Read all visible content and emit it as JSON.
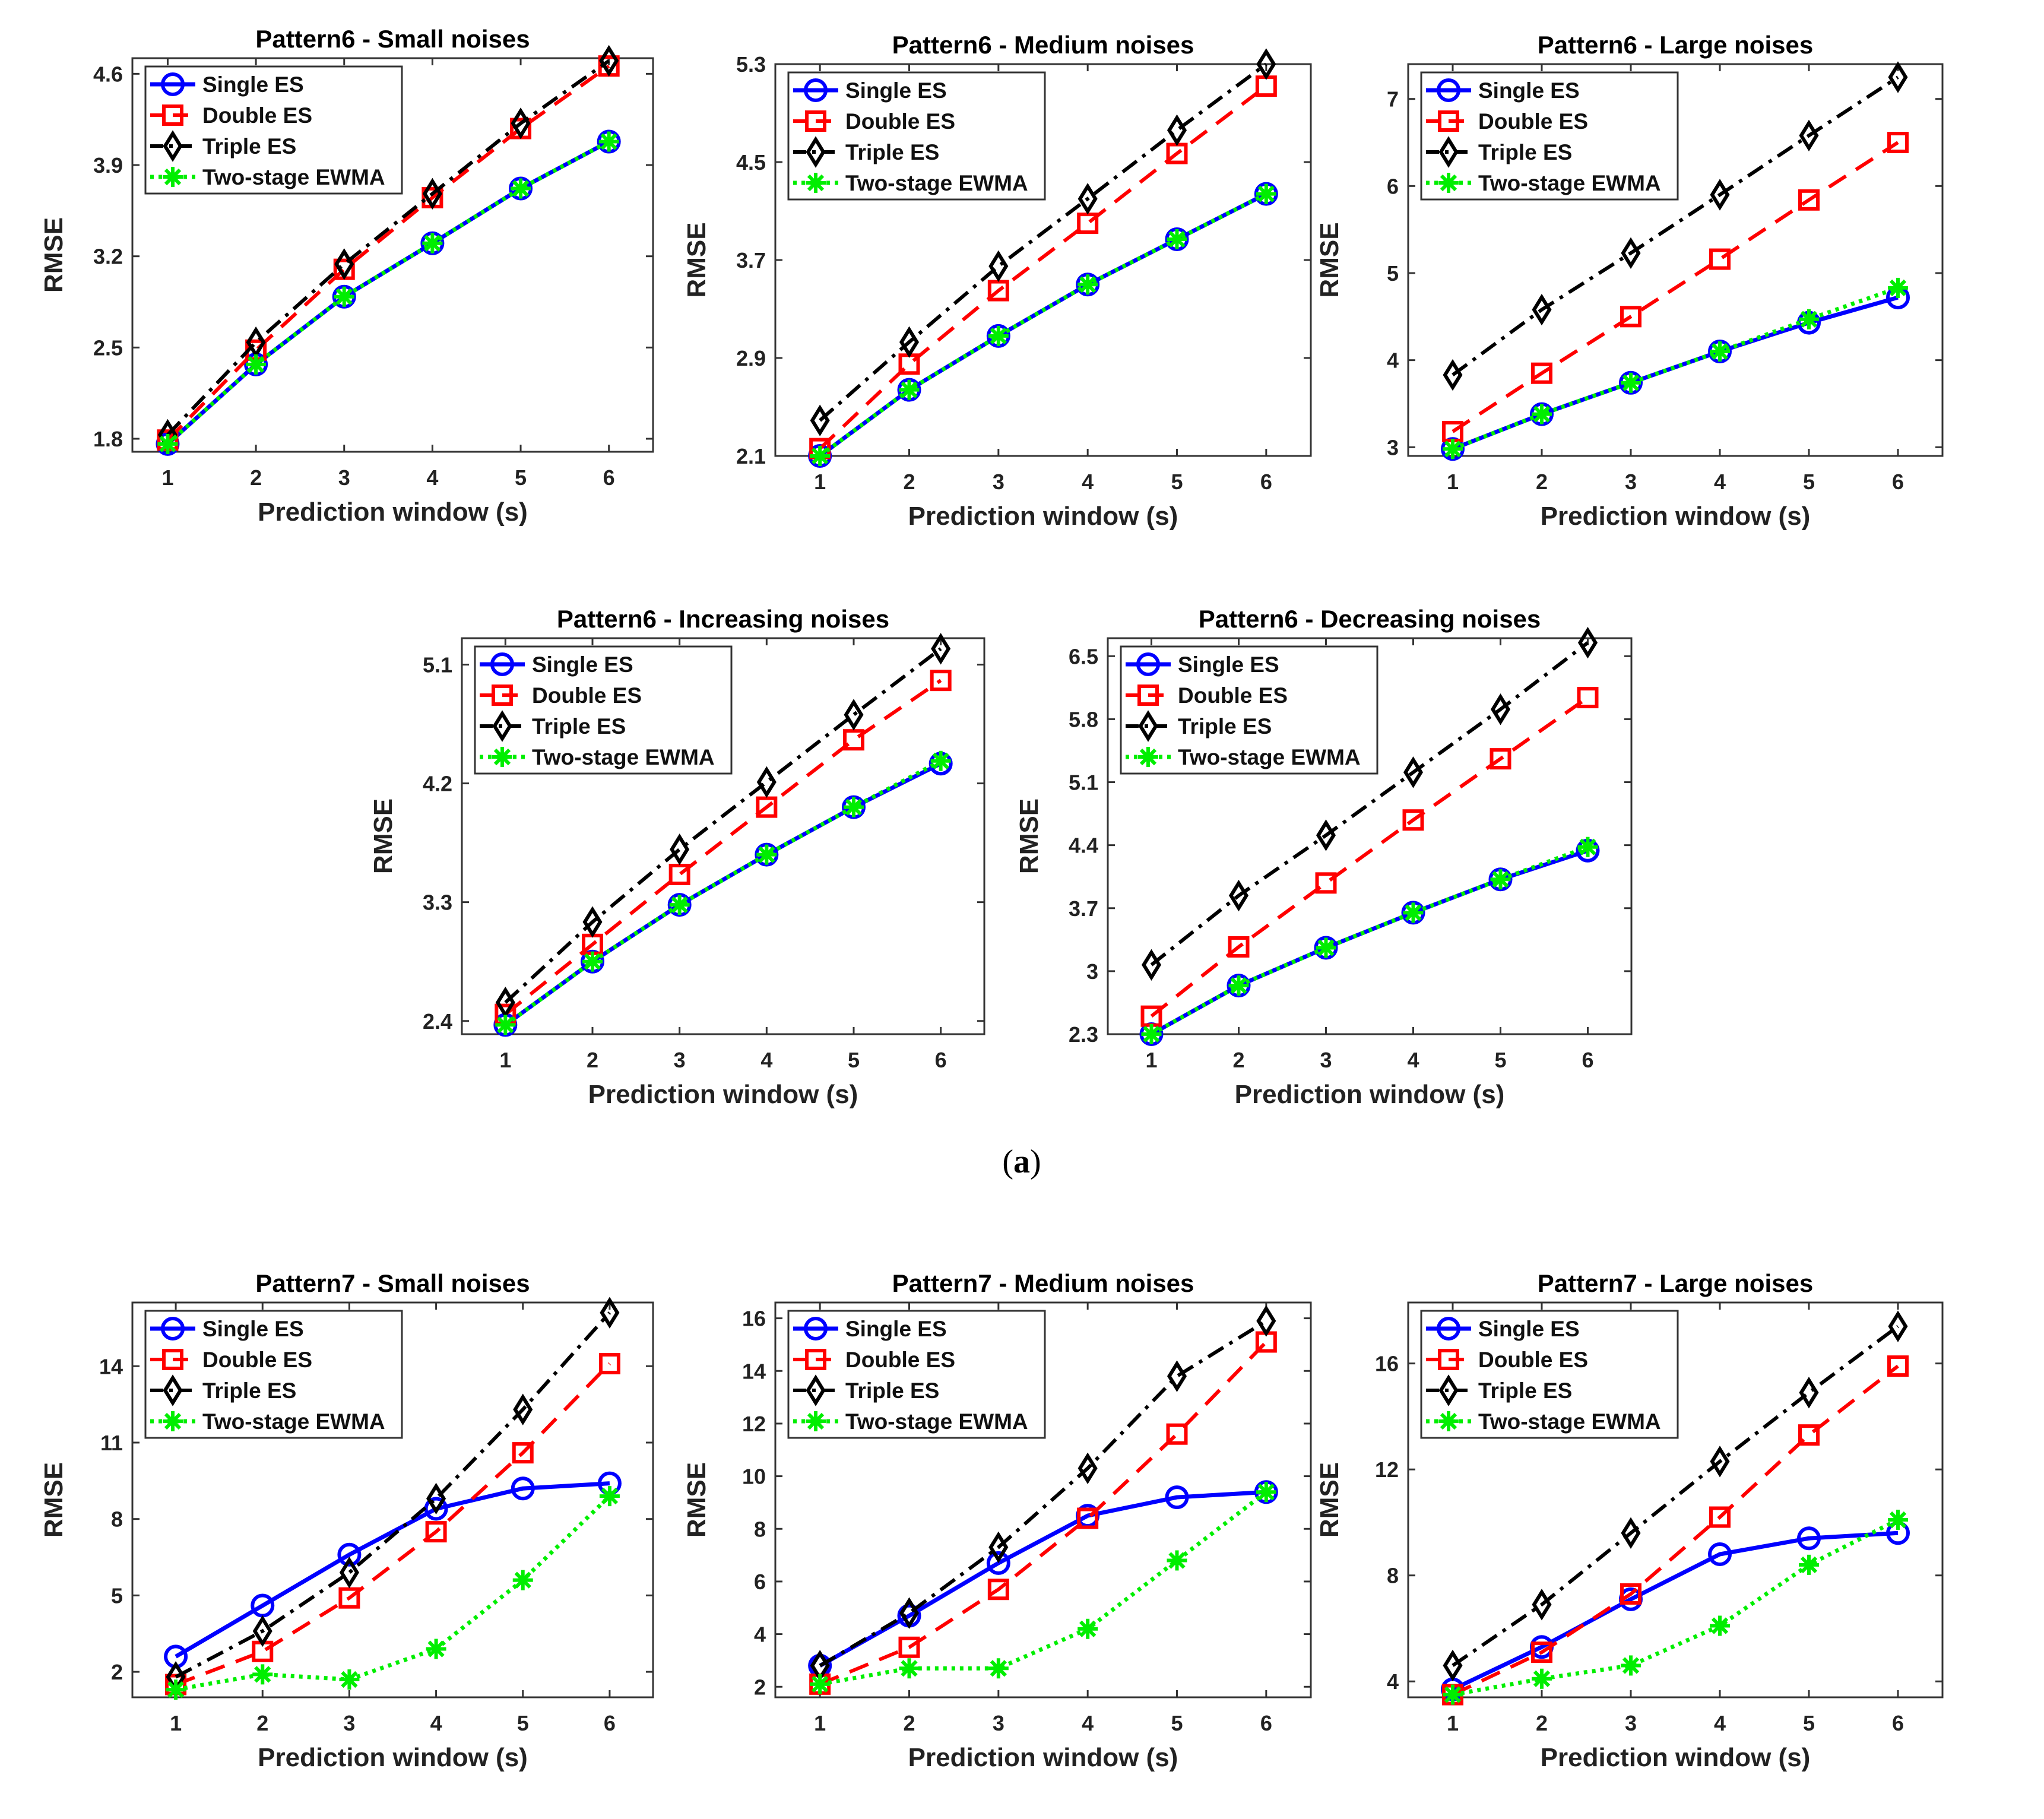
{
  "figure": {
    "caption_open": "(",
    "caption_letter": "a",
    "caption_close": ")"
  },
  "style": {
    "series_colors": {
      "Single ES": "#0000ff",
      "Double ES": "#ff0000",
      "Triple ES": "#000000",
      "Two-stage EWMA": "#00ee00"
    }
  },
  "chart_data": [
    {
      "type": "line",
      "title": "Pattern6 - Small noises",
      "xlabel": "Prediction window (s)",
      "ylabel": "RMSE",
      "x": [
        1,
        2,
        3,
        4,
        5,
        6
      ],
      "xlim": [
        0.6,
        6.5
      ],
      "ylim": [
        1.7,
        4.72
      ],
      "yticks": [
        1.8,
        2.5,
        3.2,
        3.9,
        4.6
      ],
      "ytick_labels": [
        "1.8",
        "2.5",
        "3.2",
        "3.9",
        "4.6"
      ],
      "legend": "top-left",
      "series": [
        {
          "name": "Single ES",
          "values": [
            1.76,
            2.37,
            2.89,
            3.3,
            3.72,
            4.08
          ]
        },
        {
          "name": "Double ES",
          "values": [
            1.79,
            2.48,
            3.1,
            3.65,
            4.18,
            4.66
          ]
        },
        {
          "name": "Triple ES",
          "values": [
            1.83,
            2.54,
            3.14,
            3.68,
            4.22,
            4.7
          ]
        },
        {
          "name": "Two-stage EWMA",
          "values": [
            1.76,
            2.37,
            2.89,
            3.3,
            3.72,
            4.08
          ]
        }
      ]
    },
    {
      "type": "line",
      "title": "Pattern6 - Medium noises",
      "xlabel": "Prediction window (s)",
      "ylabel": "RMSE",
      "x": [
        1,
        2,
        3,
        4,
        5,
        6
      ],
      "xlim": [
        0.5,
        6.5
      ],
      "ylim": [
        2.1,
        5.3
      ],
      "yticks": [
        2.1,
        2.9,
        3.7,
        4.5,
        5.3
      ],
      "ytick_labels": [
        "2.1",
        "2.9",
        "3.7",
        "4.5",
        "5.3"
      ],
      "legend": "top-left",
      "series": [
        {
          "name": "Single ES",
          "values": [
            2.1,
            2.64,
            3.08,
            3.5,
            3.87,
            4.24
          ]
        },
        {
          "name": "Double ES",
          "values": [
            2.16,
            2.85,
            3.45,
            4.0,
            4.57,
            5.12
          ]
        },
        {
          "name": "Triple ES",
          "values": [
            2.39,
            3.03,
            3.65,
            4.2,
            4.76,
            5.3
          ]
        },
        {
          "name": "Two-stage EWMA",
          "values": [
            2.1,
            2.64,
            3.08,
            3.5,
            3.87,
            4.24
          ]
        }
      ]
    },
    {
      "type": "line",
      "title": "Pattern6 - Large noises",
      "xlabel": "Prediction window (s)",
      "ylabel": "RMSE",
      "x": [
        1,
        2,
        3,
        4,
        5,
        6
      ],
      "xlim": [
        0.5,
        6.5
      ],
      "ylim": [
        2.9,
        7.4
      ],
      "yticks": [
        3,
        4,
        5,
        6,
        7
      ],
      "ytick_labels": [
        "3",
        "4",
        "5",
        "6",
        "7"
      ],
      "legend": "top-left",
      "series": [
        {
          "name": "Single ES",
          "values": [
            2.98,
            3.38,
            3.74,
            4.1,
            4.43,
            4.72
          ]
        },
        {
          "name": "Double ES",
          "values": [
            3.18,
            3.85,
            4.5,
            5.16,
            5.84,
            6.5
          ]
        },
        {
          "name": "Triple ES",
          "values": [
            3.83,
            4.58,
            5.23,
            5.9,
            6.58,
            7.25
          ]
        },
        {
          "name": "Two-stage EWMA",
          "values": [
            2.98,
            3.38,
            3.74,
            4.1,
            4.47,
            4.83
          ]
        }
      ]
    },
    {
      "type": "line",
      "title": "Pattern6 - Increasing noises",
      "xlabel": "Prediction window (s)",
      "ylabel": "RMSE",
      "x": [
        1,
        2,
        3,
        4,
        5,
        6
      ],
      "xlim": [
        0.5,
        6.5
      ],
      "ylim": [
        2.3,
        5.3
      ],
      "yticks": [
        2.4,
        3.3,
        4.2,
        5.1
      ],
      "ytick_labels": [
        "2.4",
        "3.3",
        "4.2",
        "5.1"
      ],
      "legend": "top-left",
      "series": [
        {
          "name": "Single ES",
          "values": [
            2.37,
            2.85,
            3.28,
            3.66,
            4.02,
            4.35
          ]
        },
        {
          "name": "Double ES",
          "values": [
            2.45,
            2.98,
            3.51,
            4.02,
            4.53,
            4.98
          ]
        },
        {
          "name": "Triple ES",
          "values": [
            2.54,
            3.15,
            3.7,
            4.21,
            4.72,
            5.22
          ]
        },
        {
          "name": "Two-stage EWMA",
          "values": [
            2.37,
            2.85,
            3.28,
            3.66,
            4.02,
            4.37
          ]
        }
      ]
    },
    {
      "type": "line",
      "title": "Pattern6 - Decreasing noises",
      "xlabel": "Prediction window (s)",
      "ylabel": "RMSE",
      "x": [
        1,
        2,
        3,
        4,
        5,
        6
      ],
      "xlim": [
        0.5,
        6.5
      ],
      "ylim": [
        2.3,
        6.7
      ],
      "yticks": [
        2.3,
        3,
        3.7,
        4.4,
        5.1,
        5.8,
        6.5
      ],
      "ytick_labels": [
        "2.3",
        "3",
        "3.7",
        "4.4",
        "5.1",
        "5.8",
        "6.5"
      ],
      "legend": "top-left",
      "series": [
        {
          "name": "Single ES",
          "values": [
            2.3,
            2.84,
            3.26,
            3.65,
            4.02,
            4.34
          ]
        },
        {
          "name": "Double ES",
          "values": [
            2.5,
            3.27,
            3.98,
            4.68,
            5.36,
            6.04
          ]
        },
        {
          "name": "Triple ES",
          "values": [
            3.07,
            3.84,
            4.51,
            5.21,
            5.91,
            6.65
          ]
        },
        {
          "name": "Two-stage EWMA",
          "values": [
            2.3,
            2.84,
            3.26,
            3.65,
            4.02,
            4.38
          ]
        }
      ]
    },
    {
      "type": "line",
      "title": "Pattern7 - Small noises",
      "xlabel": "Prediction window (s)",
      "ylabel": "RMSE",
      "x": [
        1,
        2,
        3,
        4,
        5,
        6
      ],
      "xlim": [
        0.5,
        6.5
      ],
      "ylim": [
        1.0,
        16.5
      ],
      "yticks": [
        2,
        5,
        8,
        11,
        14
      ],
      "ytick_labels": [
        "2",
        "5",
        "8",
        "11",
        "14"
      ],
      "legend": "top-left",
      "series": [
        {
          "name": "Single ES",
          "values": [
            2.6,
            4.6,
            6.6,
            8.4,
            9.2,
            9.4
          ]
        },
        {
          "name": "Double ES",
          "values": [
            1.5,
            2.8,
            4.9,
            7.5,
            10.6,
            14.1
          ]
        },
        {
          "name": "Triple ES",
          "values": [
            1.8,
            3.6,
            5.9,
            8.8,
            12.3,
            16.1
          ]
        },
        {
          "name": "Two-stage EWMA",
          "values": [
            1.3,
            1.9,
            1.7,
            2.9,
            5.6,
            8.9
          ]
        }
      ]
    },
    {
      "type": "line",
      "title": "Pattern7 - Medium noises",
      "xlabel": "Prediction window (s)",
      "ylabel": "RMSE",
      "x": [
        1,
        2,
        3,
        4,
        5,
        6
      ],
      "xlim": [
        0.5,
        6.5
      ],
      "ylim": [
        1.6,
        16.6
      ],
      "yticks": [
        2,
        4,
        6,
        8,
        10,
        12,
        14,
        16
      ],
      "ytick_labels": [
        "2",
        "4",
        "6",
        "8",
        "10",
        "12",
        "14",
        "16"
      ],
      "legend": "top-left",
      "series": [
        {
          "name": "Single ES",
          "values": [
            2.8,
            4.7,
            6.7,
            8.5,
            9.2,
            9.4
          ]
        },
        {
          "name": "Double ES",
          "values": [
            2.1,
            3.5,
            5.7,
            8.4,
            11.6,
            15.1
          ]
        },
        {
          "name": "Triple ES",
          "values": [
            2.8,
            4.8,
            7.3,
            10.3,
            13.8,
            15.9
          ]
        },
        {
          "name": "Two-stage EWMA",
          "values": [
            2.1,
            2.7,
            2.7,
            4.2,
            6.8,
            9.4
          ]
        }
      ]
    },
    {
      "type": "line",
      "title": "Pattern7 - Large noises",
      "xlabel": "Prediction window (s)",
      "ylabel": "RMSE",
      "x": [
        1,
        2,
        3,
        4,
        5,
        6
      ],
      "xlim": [
        0.5,
        6.5
      ],
      "ylim": [
        3.4,
        18.3
      ],
      "yticks": [
        4,
        8,
        12,
        16
      ],
      "ytick_labels": [
        "4",
        "8",
        "12",
        "16"
      ],
      "legend": "top-left",
      "series": [
        {
          "name": "Single ES",
          "values": [
            3.7,
            5.3,
            7.1,
            8.8,
            9.4,
            9.6
          ]
        },
        {
          "name": "Double ES",
          "values": [
            3.5,
            5.1,
            7.3,
            10.2,
            13.3,
            15.9
          ]
        },
        {
          "name": "Triple ES",
          "values": [
            4.6,
            6.9,
            9.6,
            12.3,
            14.9,
            17.4
          ]
        },
        {
          "name": "Two-stage EWMA",
          "values": [
            3.5,
            4.1,
            4.6,
            6.1,
            8.4,
            10.1
          ]
        }
      ]
    }
  ]
}
